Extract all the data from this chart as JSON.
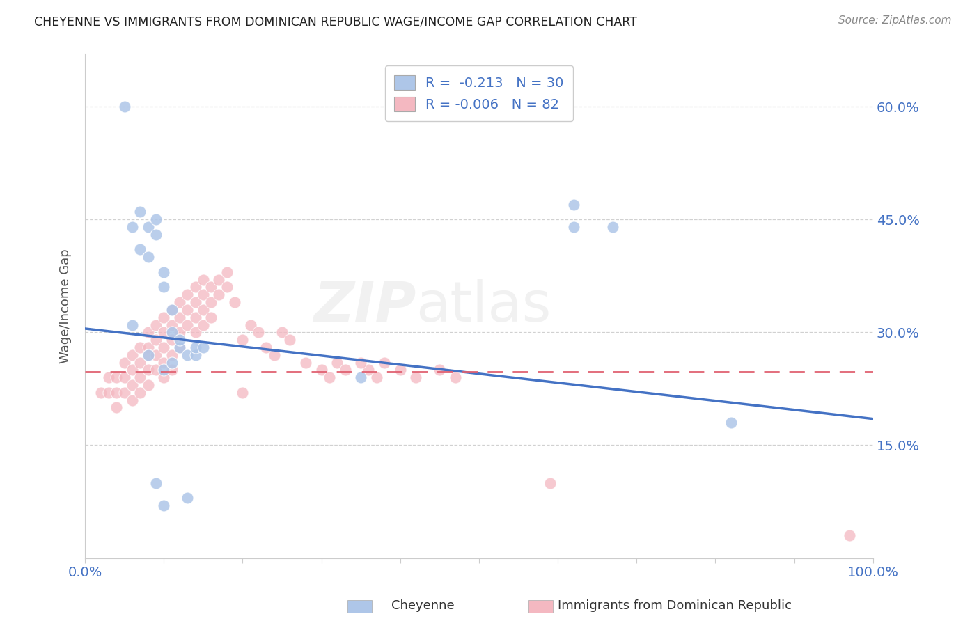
{
  "title": "CHEYENNE VS IMMIGRANTS FROM DOMINICAN REPUBLIC WAGE/INCOME GAP CORRELATION CHART",
  "source": "Source: ZipAtlas.com",
  "ylabel": "Wage/Income Gap",
  "yticks": [
    "15.0%",
    "30.0%",
    "45.0%",
    "60.0%"
  ],
  "ytick_vals": [
    0.15,
    0.3,
    0.45,
    0.6
  ],
  "xlim": [
    0.0,
    1.0
  ],
  "ylim": [
    0.0,
    0.67
  ],
  "legend1_label": "R =  -0.213   N = 30",
  "legend2_label": "R = -0.006   N = 82",
  "legend1_color": "#aec6e8",
  "legend2_color": "#f4b8c1",
  "line1_color": "#4472c4",
  "line2_color": "#e06070",
  "watermark_zip": "ZIP",
  "watermark_atlas": "atlas",
  "bottom_label1": "Cheyenne",
  "bottom_label2": "Immigrants from Dominican Republic",
  "cheyenne_x": [
    0.05,
    0.06,
    0.07,
    0.07,
    0.08,
    0.08,
    0.09,
    0.09,
    0.1,
    0.1,
    0.11,
    0.11,
    0.12,
    0.12,
    0.13,
    0.14,
    0.14,
    0.15,
    0.35,
    0.62,
    0.67,
    0.82,
    0.62,
    0.09,
    0.1,
    0.08,
    0.1,
    0.11,
    0.06,
    0.13
  ],
  "cheyenne_y": [
    0.6,
    0.44,
    0.41,
    0.46,
    0.4,
    0.44,
    0.45,
    0.43,
    0.38,
    0.36,
    0.33,
    0.3,
    0.28,
    0.29,
    0.27,
    0.27,
    0.28,
    0.28,
    0.24,
    0.47,
    0.44,
    0.18,
    0.44,
    0.1,
    0.07,
    0.27,
    0.25,
    0.26,
    0.31,
    0.08
  ],
  "dr_x": [
    0.02,
    0.03,
    0.03,
    0.04,
    0.04,
    0.04,
    0.05,
    0.05,
    0.05,
    0.06,
    0.06,
    0.06,
    0.06,
    0.07,
    0.07,
    0.07,
    0.07,
    0.08,
    0.08,
    0.08,
    0.08,
    0.08,
    0.09,
    0.09,
    0.09,
    0.09,
    0.1,
    0.1,
    0.1,
    0.1,
    0.1,
    0.11,
    0.11,
    0.11,
    0.11,
    0.11,
    0.12,
    0.12,
    0.12,
    0.12,
    0.13,
    0.13,
    0.13,
    0.14,
    0.14,
    0.14,
    0.14,
    0.15,
    0.15,
    0.15,
    0.15,
    0.16,
    0.16,
    0.16,
    0.17,
    0.17,
    0.18,
    0.18,
    0.19,
    0.2,
    0.21,
    0.22,
    0.23,
    0.24,
    0.25,
    0.26,
    0.28,
    0.3,
    0.31,
    0.32,
    0.33,
    0.36,
    0.37,
    0.38,
    0.4,
    0.42,
    0.45,
    0.47,
    0.35,
    0.2,
    0.59,
    0.97
  ],
  "dr_y": [
    0.22,
    0.24,
    0.22,
    0.24,
    0.22,
    0.2,
    0.26,
    0.24,
    0.22,
    0.27,
    0.25,
    0.23,
    0.21,
    0.28,
    0.26,
    0.24,
    0.22,
    0.3,
    0.28,
    0.27,
    0.25,
    0.23,
    0.31,
    0.29,
    0.27,
    0.25,
    0.32,
    0.3,
    0.28,
    0.26,
    0.24,
    0.33,
    0.31,
    0.29,
    0.27,
    0.25,
    0.34,
    0.32,
    0.3,
    0.28,
    0.35,
    0.33,
    0.31,
    0.36,
    0.34,
    0.32,
    0.3,
    0.37,
    0.35,
    0.33,
    0.31,
    0.36,
    0.34,
    0.32,
    0.37,
    0.35,
    0.38,
    0.36,
    0.34,
    0.29,
    0.31,
    0.3,
    0.28,
    0.27,
    0.3,
    0.29,
    0.26,
    0.25,
    0.24,
    0.26,
    0.25,
    0.25,
    0.24,
    0.26,
    0.25,
    0.24,
    0.25,
    0.24,
    0.26,
    0.22,
    0.1,
    0.03
  ],
  "background_color": "#ffffff",
  "grid_color": "#cccccc",
  "title_color": "#222222",
  "axis_color": "#555555",
  "tick_color": "#4472c4",
  "line1_y_start": 0.305,
  "line1_y_end": 0.185,
  "line2_y_start": 0.248,
  "line2_y_end": 0.248
}
